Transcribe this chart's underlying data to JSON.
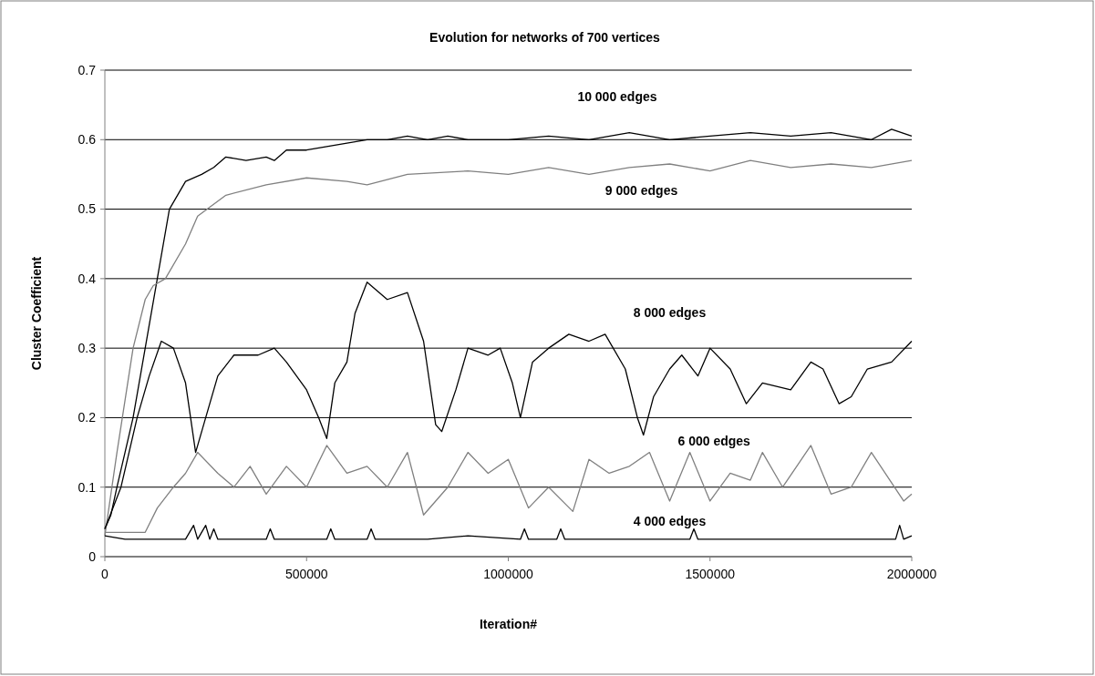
{
  "chart_data": {
    "type": "line",
    "title": "Evolution for networks of 700 vertices",
    "xlabel": "Iteration#",
    "ylabel": "Cluster Coefficient",
    "xlim": [
      0,
      2000000
    ],
    "xticks": [
      0,
      500000,
      1000000,
      1500000,
      2000000
    ],
    "ylim": [
      0,
      0.7
    ],
    "yticks": [
      0,
      0.1,
      0.2,
      0.3,
      0.4,
      0.5,
      0.6,
      0.7
    ],
    "grid": "y",
    "series": [
      {
        "name": "10 000 edges",
        "color": "#000000",
        "x": [
          0,
          15000,
          30000,
          50000,
          70000,
          100000,
          130000,
          160000,
          200000,
          240000,
          270000,
          300000,
          350000,
          400000,
          420000,
          450000,
          500000,
          550000,
          600000,
          650000,
          700000,
          750000,
          800000,
          850000,
          900000,
          1000000,
          1100000,
          1200000,
          1300000,
          1400000,
          1500000,
          1600000,
          1700000,
          1800000,
          1900000,
          1950000,
          2000000
        ],
        "values": [
          0.04,
          0.06,
          0.1,
          0.15,
          0.2,
          0.3,
          0.4,
          0.5,
          0.54,
          0.55,
          0.56,
          0.575,
          0.57,
          0.575,
          0.57,
          0.585,
          0.585,
          0.59,
          0.595,
          0.6,
          0.6,
          0.605,
          0.6,
          0.605,
          0.6,
          0.6,
          0.605,
          0.6,
          0.61,
          0.6,
          0.605,
          0.61,
          0.605,
          0.61,
          0.6,
          0.615,
          0.605
        ]
      },
      {
        "name": "9 000 edges",
        "color": "#808080",
        "x": [
          0,
          30000,
          70000,
          100000,
          120000,
          150000,
          200000,
          230000,
          300000,
          400000,
          500000,
          600000,
          650000,
          750000,
          900000,
          1000000,
          1100000,
          1200000,
          1300000,
          1400000,
          1500000,
          1600000,
          1700000,
          1800000,
          1900000,
          2000000
        ],
        "values": [
          0.03,
          0.15,
          0.3,
          0.37,
          0.39,
          0.4,
          0.45,
          0.49,
          0.52,
          0.535,
          0.545,
          0.54,
          0.535,
          0.55,
          0.555,
          0.55,
          0.56,
          0.55,
          0.56,
          0.565,
          0.555,
          0.57,
          0.56,
          0.565,
          0.56,
          0.57
        ]
      },
      {
        "name": "8 000 edges",
        "color": "#000000",
        "x": [
          0,
          40000,
          80000,
          110000,
          140000,
          170000,
          200000,
          225000,
          250000,
          280000,
          320000,
          380000,
          420000,
          450000,
          500000,
          530000,
          550000,
          570000,
          600000,
          620000,
          650000,
          700000,
          750000,
          790000,
          820000,
          835000,
          870000,
          900000,
          950000,
          980000,
          1010000,
          1030000,
          1060000,
          1100000,
          1150000,
          1200000,
          1240000,
          1290000,
          1320000,
          1335000,
          1360000,
          1400000,
          1430000,
          1470000,
          1500000,
          1550000,
          1590000,
          1630000,
          1700000,
          1750000,
          1780000,
          1820000,
          1850000,
          1890000,
          1950000,
          2000000
        ],
        "values": [
          0.04,
          0.1,
          0.2,
          0.26,
          0.31,
          0.3,
          0.25,
          0.15,
          0.2,
          0.26,
          0.29,
          0.29,
          0.3,
          0.28,
          0.24,
          0.2,
          0.17,
          0.25,
          0.28,
          0.35,
          0.395,
          0.37,
          0.38,
          0.31,
          0.19,
          0.18,
          0.24,
          0.3,
          0.29,
          0.3,
          0.25,
          0.2,
          0.28,
          0.3,
          0.32,
          0.31,
          0.32,
          0.27,
          0.2,
          0.175,
          0.23,
          0.27,
          0.29,
          0.26,
          0.3,
          0.27,
          0.22,
          0.25,
          0.24,
          0.28,
          0.27,
          0.22,
          0.23,
          0.27,
          0.28,
          0.31
        ]
      },
      {
        "name": "6 000 edges",
        "color": "#808080",
        "x": [
          0,
          100000,
          130000,
          170000,
          200000,
          230000,
          280000,
          320000,
          360000,
          400000,
          450000,
          500000,
          550000,
          600000,
          650000,
          700000,
          750000,
          790000,
          850000,
          900000,
          950000,
          1000000,
          1050000,
          1100000,
          1160000,
          1200000,
          1250000,
          1300000,
          1350000,
          1400000,
          1450000,
          1500000,
          1550000,
          1600000,
          1630000,
          1680000,
          1750000,
          1800000,
          1850000,
          1900000,
          1980000,
          2000000
        ],
        "values": [
          0.035,
          0.035,
          0.07,
          0.1,
          0.12,
          0.15,
          0.12,
          0.1,
          0.13,
          0.09,
          0.13,
          0.1,
          0.16,
          0.12,
          0.13,
          0.1,
          0.15,
          0.06,
          0.1,
          0.15,
          0.12,
          0.14,
          0.07,
          0.1,
          0.065,
          0.14,
          0.12,
          0.13,
          0.15,
          0.08,
          0.15,
          0.08,
          0.12,
          0.11,
          0.15,
          0.1,
          0.16,
          0.09,
          0.1,
          0.15,
          0.08,
          0.09
        ]
      },
      {
        "name": "4 000 edges",
        "color": "#000000",
        "x": [
          0,
          50000,
          100000,
          200000,
          220000,
          230000,
          250000,
          260000,
          270000,
          280000,
          400000,
          410000,
          420000,
          550000,
          560000,
          570000,
          650000,
          660000,
          670000,
          800000,
          900000,
          1030000,
          1040000,
          1050000,
          1120000,
          1130000,
          1140000,
          1300000,
          1450000,
          1460000,
          1470000,
          1600000,
          1800000,
          1960000,
          1970000,
          1980000,
          2000000
        ],
        "values": [
          0.03,
          0.025,
          0.025,
          0.025,
          0.045,
          0.025,
          0.045,
          0.025,
          0.04,
          0.025,
          0.025,
          0.04,
          0.025,
          0.025,
          0.04,
          0.025,
          0.025,
          0.04,
          0.025,
          0.025,
          0.03,
          0.025,
          0.04,
          0.025,
          0.025,
          0.04,
          0.025,
          0.025,
          0.025,
          0.04,
          0.025,
          0.025,
          0.025,
          0.025,
          0.045,
          0.025,
          0.03
        ]
      }
    ]
  }
}
